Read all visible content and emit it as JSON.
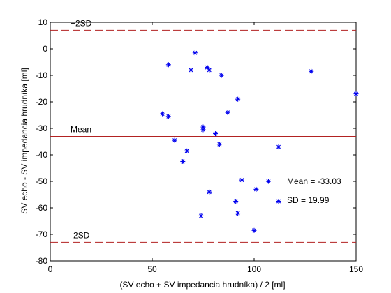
{
  "chart_data": {
    "type": "scatter",
    "title": "",
    "xlabel": "(SV echo + SV impedancia hrudníka) / 2 [ml]",
    "ylabel": "SV echo - SV impedancia hrudníka [ml]",
    "xlim": [
      0,
      150
    ],
    "ylim": [
      -80,
      10
    ],
    "x_ticks": [
      0,
      50,
      100,
      150
    ],
    "y_ticks": [
      10,
      0,
      -10,
      -20,
      -30,
      -40,
      -50,
      -60,
      -70,
      -80
    ],
    "grid": false,
    "marker": "*",
    "colors": {
      "points": "#0000ee",
      "lines": "#b22222",
      "axes": "#000000"
    },
    "points": [
      {
        "x": 58,
        "y": -6
      },
      {
        "x": 71,
        "y": -1.5
      },
      {
        "x": 69,
        "y": -8
      },
      {
        "x": 77,
        "y": -7
      },
      {
        "x": 78,
        "y": -8
      },
      {
        "x": 84,
        "y": -10
      },
      {
        "x": 128,
        "y": -8.5
      },
      {
        "x": 150,
        "y": -17
      },
      {
        "x": 92,
        "y": -19
      },
      {
        "x": 55,
        "y": -24.5
      },
      {
        "x": 58,
        "y": -25.5
      },
      {
        "x": 87,
        "y": -24
      },
      {
        "x": 75,
        "y": -29.5
      },
      {
        "x": 75,
        "y": -30.5
      },
      {
        "x": 81,
        "y": -32
      },
      {
        "x": 61,
        "y": -34.5
      },
      {
        "x": 83,
        "y": -36
      },
      {
        "x": 112,
        "y": -37
      },
      {
        "x": 67,
        "y": -38.5
      },
      {
        "x": 65,
        "y": -42.5
      },
      {
        "x": 94,
        "y": -49.5
      },
      {
        "x": 101,
        "y": -53
      },
      {
        "x": 107,
        "y": -50
      },
      {
        "x": 78,
        "y": -54
      },
      {
        "x": 91,
        "y": -57.5
      },
      {
        "x": 112,
        "y": -57.5
      },
      {
        "x": 92,
        "y": -62
      },
      {
        "x": 74,
        "y": -63
      },
      {
        "x": 100,
        "y": -68.5
      }
    ],
    "reference_lines": [
      {
        "label": "+2SD",
        "y": 7,
        "style": "dashed"
      },
      {
        "label": "Mean",
        "y": -33.03,
        "style": "solid"
      },
      {
        "label": "-2SD",
        "y": -73,
        "style": "dashed"
      }
    ],
    "annotations": [
      "Mean = -33.03",
      "SD = 19.99"
    ]
  }
}
